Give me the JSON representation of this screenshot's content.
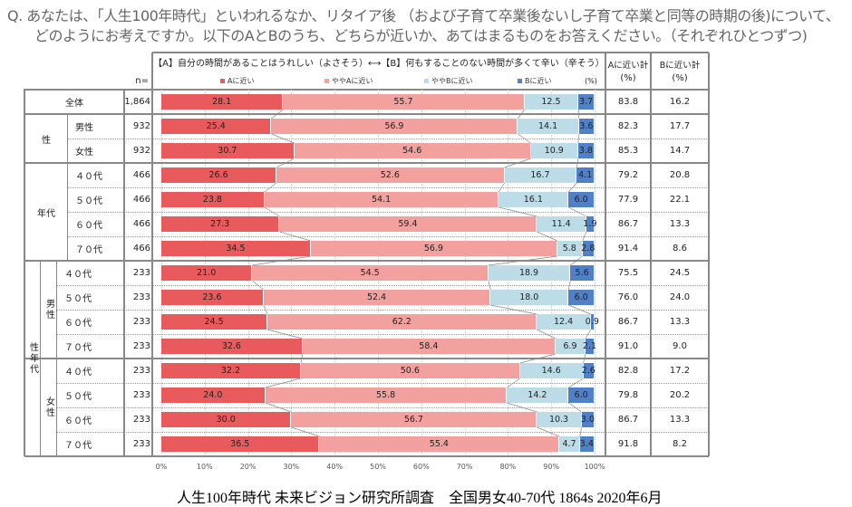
{
  "question": {
    "line1": "Q. あなたは、「人生100年時代」といわれるなか、リタイア後 （および子育て卒業後ないし子育て卒業と同等の時期の後)について、",
    "line2": "どのようにお考えですか。以下のAとBのうち、どちらが近いか、あてはまるものをお答えください。（それぞれひとつずつ)"
  },
  "header": {
    "statement": "【A】自分の時間があることはうれしい（よさそう）⟷【B】何もすることのない時間が多くて辛い（辛そう）",
    "n_label": "n=",
    "pct_label": "(%)",
    "a_total": "Aに近い計",
    "b_total": "Bに近い計",
    "unit": "(%)"
  },
  "footer": "人生100年時代 未来ビジョン研究所調査　全国男女40-70代 1864s  2020年6月",
  "chart_data": {
    "type": "bar",
    "orientation": "horizontal",
    "stacked": true,
    "xlim": [
      0,
      100
    ],
    "x_ticks": [
      "0%",
      "10%",
      "20%",
      "30%",
      "40%",
      "50%",
      "60%",
      "70%",
      "80%",
      "90%",
      "100%"
    ],
    "legend_position": "top",
    "series": [
      {
        "name": "Aに近い",
        "color": "#e85a5c"
      },
      {
        "name": "ややAに近い",
        "color": "#f2a19f"
      },
      {
        "name": "ややBに近い",
        "color": "#bcdde8"
      },
      {
        "name": "Bに近い",
        "color": "#4f80c8"
      }
    ],
    "groups": [
      {
        "label": "",
        "sub": "",
        "rows": [
          {
            "label": "全体",
            "n": "1,864",
            "values": [
              28.1,
              55.7,
              12.5,
              3.7
            ],
            "a": "83.8",
            "b": "16.2"
          }
        ]
      },
      {
        "label": "性",
        "sub": "",
        "rows": [
          {
            "label": "男性",
            "n": "932",
            "values": [
              25.4,
              56.9,
              14.1,
              3.6
            ],
            "a": "82.3",
            "b": "17.7"
          },
          {
            "label": "女性",
            "n": "932",
            "values": [
              30.7,
              54.6,
              10.9,
              3.8
            ],
            "a": "85.3",
            "b": "14.7"
          }
        ]
      },
      {
        "label": "年代",
        "sub": "",
        "rows": [
          {
            "label": "４０代",
            "n": "466",
            "values": [
              26.6,
              52.6,
              16.7,
              4.1
            ],
            "a": "79.2",
            "b": "20.8"
          },
          {
            "label": "５０代",
            "n": "466",
            "values": [
              23.8,
              54.1,
              16.1,
              6.0
            ],
            "a": "77.9",
            "b": "22.1"
          },
          {
            "label": "６０代",
            "n": "466",
            "values": [
              27.3,
              59.4,
              11.4,
              1.9
            ],
            "a": "86.7",
            "b": "13.3"
          },
          {
            "label": "７０代",
            "n": "466",
            "values": [
              34.5,
              56.9,
              5.8,
              2.8
            ],
            "a": "91.4",
            "b": "8.6"
          }
        ]
      },
      {
        "label": "性年代",
        "sub": "男性",
        "rows": [
          {
            "label": "４０代",
            "n": "233",
            "values": [
              21.0,
              54.5,
              18.9,
              5.6
            ],
            "a": "75.5",
            "b": "24.5"
          },
          {
            "label": "５０代",
            "n": "233",
            "values": [
              23.6,
              52.4,
              18.0,
              6.0
            ],
            "a": "76.0",
            "b": "24.0"
          },
          {
            "label": "６０代",
            "n": "233",
            "values": [
              24.5,
              62.2,
              12.4,
              0.9
            ],
            "a": "86.7",
            "b": "13.3"
          },
          {
            "label": "７０代",
            "n": "233",
            "values": [
              32.6,
              58.4,
              6.9,
              2.1
            ],
            "a": "91.0",
            "b": "9.0"
          }
        ]
      },
      {
        "label": "性年代",
        "sub": "女性",
        "rows": [
          {
            "label": "４０代",
            "n": "233",
            "values": [
              32.2,
              50.6,
              14.6,
              2.6
            ],
            "a": "82.8",
            "b": "17.2"
          },
          {
            "label": "５０代",
            "n": "233",
            "values": [
              24.0,
              55.8,
              14.2,
              6.0
            ],
            "a": "79.8",
            "b": "20.2"
          },
          {
            "label": "６０代",
            "n": "233",
            "values": [
              30.0,
              56.7,
              10.3,
              3.0
            ],
            "a": "86.7",
            "b": "13.3"
          },
          {
            "label": "７０代",
            "n": "233",
            "values": [
              36.5,
              55.4,
              4.7,
              3.4
            ],
            "a": "91.8",
            "b": "8.2"
          }
        ]
      }
    ]
  }
}
